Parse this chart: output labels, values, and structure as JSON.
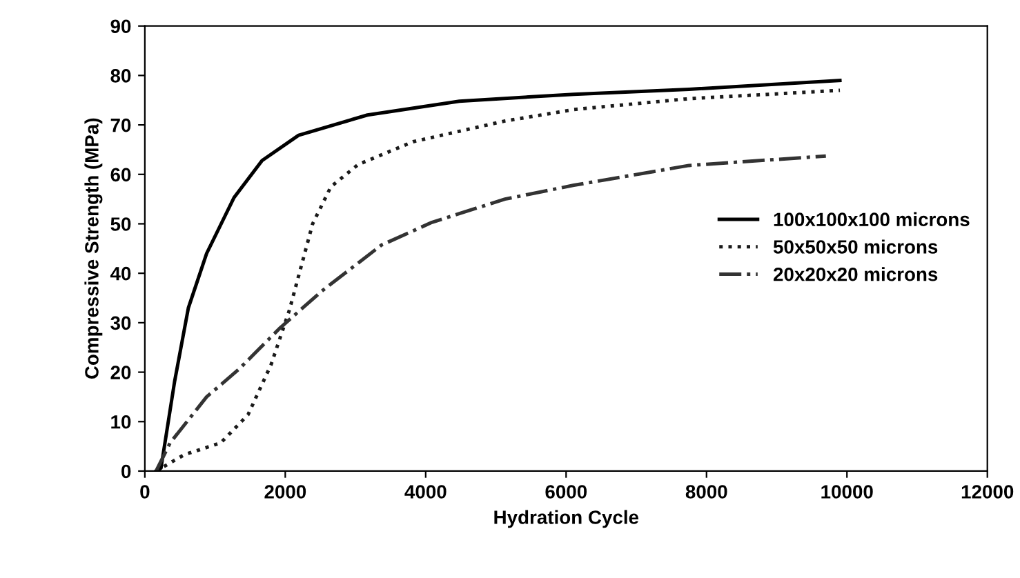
{
  "chart_data": {
    "type": "line",
    "xlabel": "Hydration Cycle",
    "ylabel": "Compressive Strength (MPa)",
    "xlim": [
      0,
      12000
    ],
    "xticks": [
      0,
      2000,
      4000,
      6000,
      8000,
      10000,
      12000
    ],
    "ylim": [
      0,
      90
    ],
    "yticks": [
      0,
      10,
      20,
      30,
      40,
      50,
      60,
      70,
      80,
      90
    ],
    "grid": false,
    "legend": "right",
    "marker": "none",
    "series": [
      {
        "name": "100x100x100 microns",
        "color": "#000000",
        "line_style": "solid",
        "x": [
          160,
          230,
          425,
          620,
          880,
          1270,
          1670,
          2190,
          3170,
          4480,
          6110,
          7750,
          9900
        ],
        "values": [
          0,
          0.6,
          18.2,
          33,
          44,
          55.3,
          62.8,
          67.9,
          72,
          74.8,
          76.2,
          77.2,
          79
        ]
      },
      {
        "name": "50x50x50 microns",
        "color": "#1a1a1a",
        "line_style": "dotted",
        "x": [
          160,
          560,
          1080,
          1470,
          1800,
          2060,
          2390,
          2650,
          3040,
          3820,
          5130,
          6110,
          7750,
          9900
        ],
        "values": [
          0,
          3.3,
          5.7,
          11.4,
          21.6,
          32.6,
          50,
          57.5,
          62,
          66.6,
          70.8,
          73.1,
          75.3,
          77
        ]
      },
      {
        "name": "20x20x20 microns",
        "color": "#333333",
        "line_style": "dashdot",
        "x": [
          160,
          360,
          880,
          1340,
          1930,
          2520,
          3370,
          4090,
          5130,
          6110,
          7750,
          9700
        ],
        "values": [
          0,
          5.7,
          15,
          20.6,
          29,
          36.4,
          45.7,
          50.3,
          55,
          57.8,
          61.8,
          63.7
        ]
      }
    ]
  }
}
